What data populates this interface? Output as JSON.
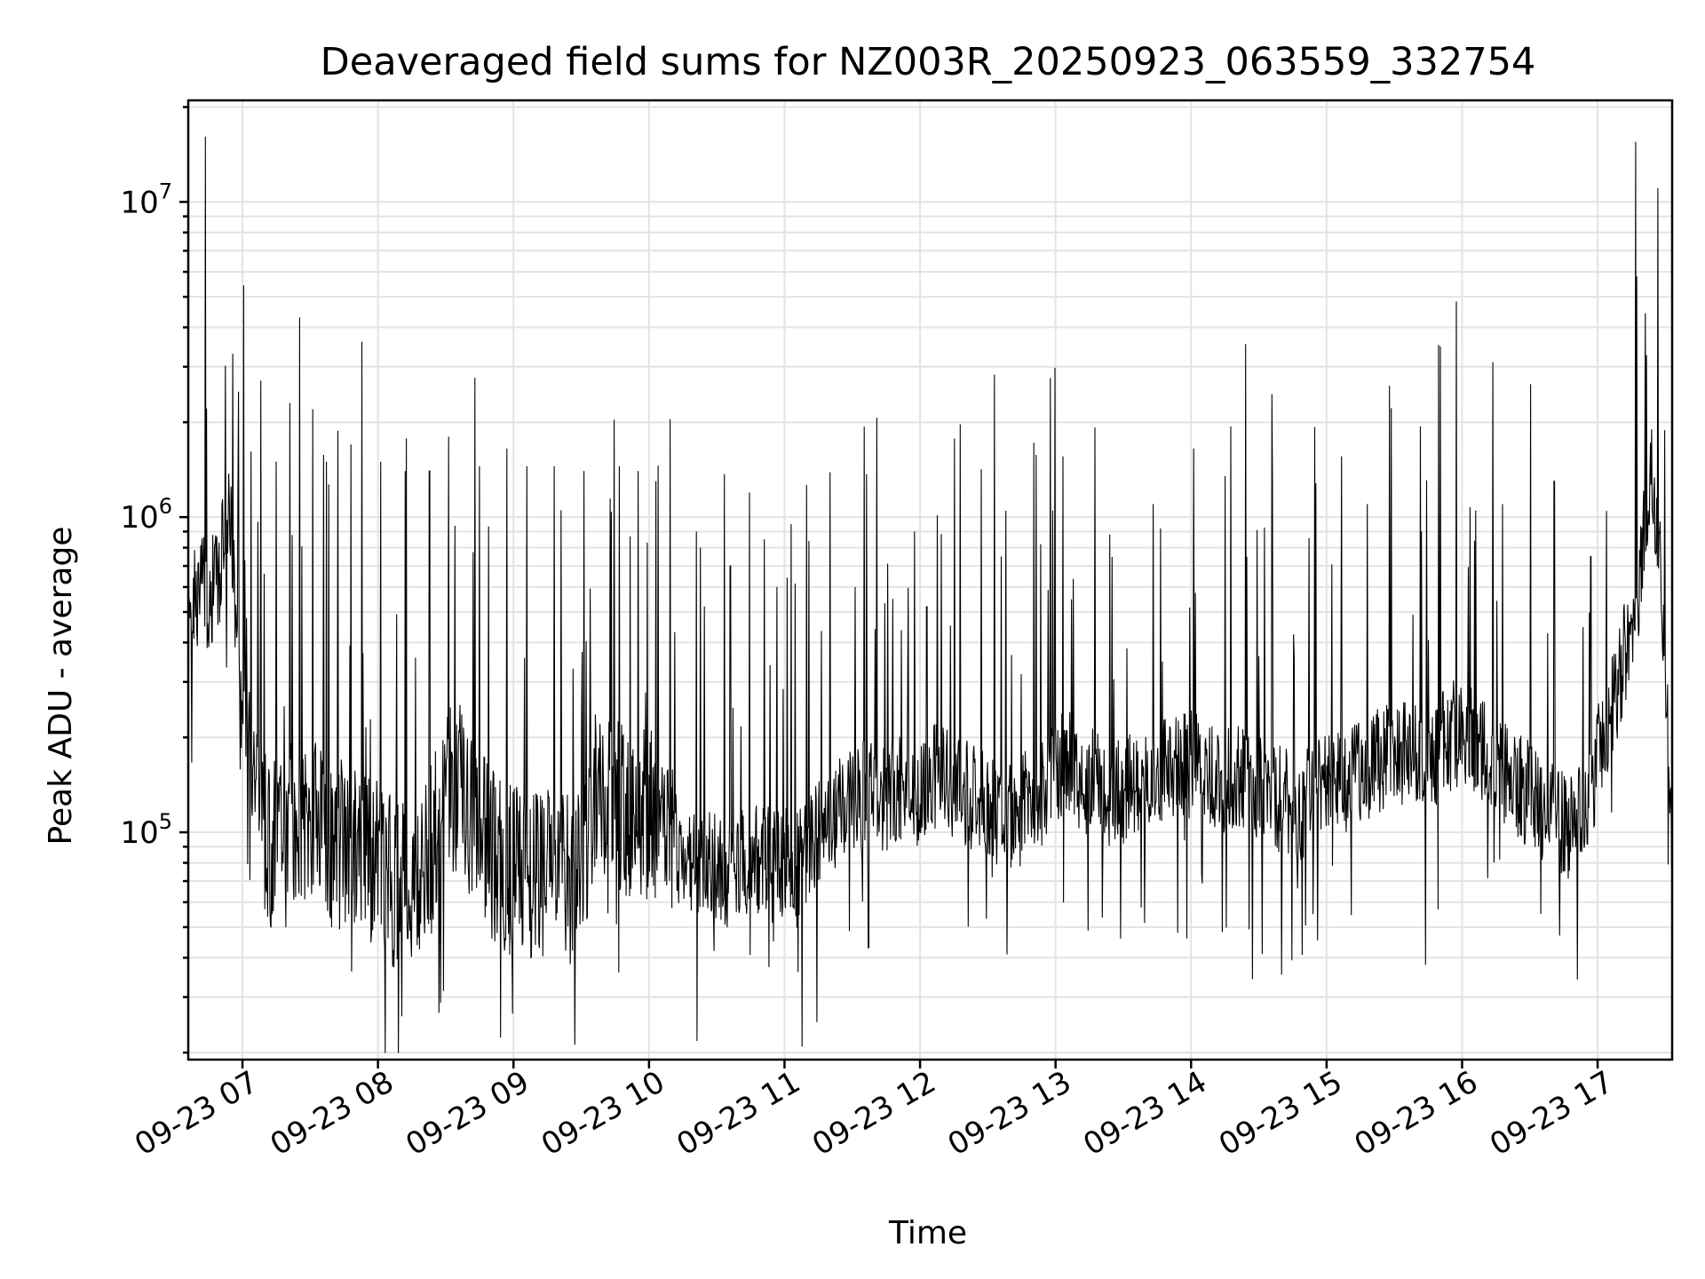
{
  "chart_data": {
    "type": "line",
    "title": "Deaveraged field sums for NZ003R_20250923_063559_332754",
    "xlabel": "Time",
    "ylabel": "Peak ADU - average",
    "yscale": "log",
    "ylim": [
      19000,
      21000000
    ],
    "xlim_hours": [
      6.6,
      17.55
    ],
    "x_ticks": [
      {
        "hour": 7,
        "label": "09-23 07"
      },
      {
        "hour": 8,
        "label": "09-23 08"
      },
      {
        "hour": 9,
        "label": "09-23 09"
      },
      {
        "hour": 10,
        "label": "09-23 10"
      },
      {
        "hour": 11,
        "label": "09-23 11"
      },
      {
        "hour": 12,
        "label": "09-23 12"
      },
      {
        "hour": 13,
        "label": "09-23 13"
      },
      {
        "hour": 14,
        "label": "09-23 14"
      },
      {
        "hour": 15,
        "label": "09-23 15"
      },
      {
        "hour": 16,
        "label": "09-23 16"
      },
      {
        "hour": 17,
        "label": "09-23 17"
      }
    ],
    "y_ticks": [
      {
        "value": 100000,
        "base": "10",
        "exp": "5"
      },
      {
        "value": 1000000,
        "base": "10",
        "exp": "6"
      },
      {
        "value": 10000000,
        "base": "10",
        "exp": "7"
      }
    ],
    "grid": true,
    "series": [
      {
        "name": "field sums",
        "color": "#000000",
        "points": [
          [
            6.6,
            620000
          ],
          [
            6.65,
            520000
          ],
          [
            6.7,
            600000
          ],
          [
            6.75,
            560000
          ],
          [
            6.8,
            620000
          ],
          [
            6.85,
            750000
          ],
          [
            6.9,
            1200000
          ],
          [
            6.95,
            500000
          ],
          [
            7.0,
            350000
          ],
          [
            7.05,
            230000
          ],
          [
            7.1,
            160000
          ],
          [
            7.15,
            110000
          ],
          [
            7.2,
            85000
          ],
          [
            7.3,
            130000
          ],
          [
            7.4,
            100000
          ],
          [
            7.5,
            115000
          ],
          [
            7.6,
            95000
          ],
          [
            7.7,
            90000
          ],
          [
            7.8,
            92000
          ],
          [
            7.9,
            88000
          ],
          [
            8.0,
            80000
          ],
          [
            8.1,
            70000
          ],
          [
            8.2,
            68000
          ],
          [
            8.3,
            72000
          ],
          [
            8.4,
            90000
          ],
          [
            8.5,
            130000
          ],
          [
            8.6,
            140000
          ],
          [
            8.7,
            110000
          ],
          [
            8.8,
            90000
          ],
          [
            8.9,
            80000
          ],
          [
            9.0,
            75000
          ],
          [
            9.1,
            72000
          ],
          [
            9.2,
            70000
          ],
          [
            9.3,
            75000
          ],
          [
            9.4,
            70000
          ],
          [
            9.5,
            72000
          ],
          [
            9.6,
            130000
          ],
          [
            9.7,
            140000
          ],
          [
            9.8,
            120000
          ],
          [
            9.9,
            110000
          ],
          [
            10.0,
            115000
          ],
          [
            10.1,
            105000
          ],
          [
            10.2,
            90000
          ],
          [
            10.3,
            85000
          ],
          [
            10.4,
            80000
          ],
          [
            10.5,
            78000
          ],
          [
            10.6,
            72000
          ],
          [
            10.7,
            80000
          ],
          [
            10.8,
            82000
          ],
          [
            10.9,
            85000
          ],
          [
            11.0,
            80000
          ],
          [
            11.1,
            78000
          ],
          [
            11.2,
            95000
          ],
          [
            11.3,
            100000
          ],
          [
            11.4,
            120000
          ],
          [
            11.5,
            130000
          ],
          [
            11.6,
            135000
          ],
          [
            11.7,
            120000
          ],
          [
            11.8,
            135000
          ],
          [
            11.9,
            140000
          ],
          [
            12.0,
            130000
          ],
          [
            12.1,
            150000
          ],
          [
            12.2,
            145000
          ],
          [
            12.3,
            135000
          ],
          [
            12.4,
            130000
          ],
          [
            12.5,
            120000
          ],
          [
            12.6,
            115000
          ],
          [
            12.7,
            110000
          ],
          [
            12.8,
            125000
          ],
          [
            12.9,
            130000
          ],
          [
            13.0,
            160000
          ],
          [
            13.1,
            165000
          ],
          [
            13.2,
            150000
          ],
          [
            13.3,
            140000
          ],
          [
            13.4,
            130000
          ],
          [
            13.5,
            135000
          ],
          [
            13.6,
            145000
          ],
          [
            13.7,
            155000
          ],
          [
            13.8,
            160000
          ],
          [
            13.9,
            170000
          ],
          [
            14.0,
            165000
          ],
          [
            14.1,
            160000
          ],
          [
            14.2,
            150000
          ],
          [
            14.3,
            145000
          ],
          [
            14.4,
            150000
          ],
          [
            14.5,
            135000
          ],
          [
            14.6,
            130000
          ],
          [
            14.7,
            125000
          ],
          [
            14.8,
            120000
          ],
          [
            14.9,
            130000
          ],
          [
            15.0,
            140000
          ],
          [
            15.1,
            145000
          ],
          [
            15.2,
            150000
          ],
          [
            15.3,
            160000
          ],
          [
            15.4,
            170000
          ],
          [
            15.5,
            180000
          ],
          [
            15.6,
            175000
          ],
          [
            15.7,
            170000
          ],
          [
            15.8,
            180000
          ],
          [
            15.9,
            200000
          ],
          [
            16.0,
            210000
          ],
          [
            16.1,
            190000
          ],
          [
            16.2,
            170000
          ],
          [
            16.3,
            150000
          ],
          [
            16.4,
            140000
          ],
          [
            16.5,
            130000
          ],
          [
            16.6,
            120000
          ],
          [
            16.7,
            110000
          ],
          [
            16.8,
            100000
          ],
          [
            16.9,
            120000
          ],
          [
            17.0,
            170000
          ],
          [
            17.1,
            240000
          ],
          [
            17.2,
            360000
          ],
          [
            17.25,
            450000
          ],
          [
            17.3,
            600000
          ],
          [
            17.35,
            900000
          ],
          [
            17.4,
            1300000
          ],
          [
            17.45,
            900000
          ],
          [
            17.5,
            300000
          ],
          [
            17.55,
            100000
          ]
        ],
        "spikes": [
          [
            6.93,
            3300000
          ],
          [
            6.97,
            2500000
          ],
          [
            7.25,
            1500000
          ],
          [
            7.35,
            2300000
          ],
          [
            7.42,
            4300000
          ],
          [
            7.52,
            2200000
          ],
          [
            7.62,
            1500000
          ],
          [
            7.8,
            1700000
          ],
          [
            7.88,
            3600000
          ],
          [
            8.02,
            1500000
          ],
          [
            8.2,
            1400000
          ],
          [
            8.38,
            1400000
          ],
          [
            8.52,
            1800000
          ],
          [
            8.75,
            1450000
          ],
          [
            8.95,
            1650000
          ],
          [
            9.1,
            1450000
          ],
          [
            9.3,
            1450000
          ],
          [
            9.52,
            1400000
          ],
          [
            9.78,
            1450000
          ],
          [
            9.92,
            1400000
          ],
          [
            10.05,
            1300000
          ],
          [
            10.35,
            900000
          ],
          [
            10.6,
            700000
          ],
          [
            10.85,
            850000
          ],
          [
            11.05,
            950000
          ],
          [
            11.18,
            840000
          ],
          [
            11.52,
            600000
          ],
          [
            11.8,
            550000
          ],
          [
            12.05,
            520000
          ],
          [
            12.6,
            750000
          ],
          [
            12.98,
            1050000
          ],
          [
            13.4,
            880000
          ],
          [
            13.72,
            1100000
          ],
          [
            14.02,
            1650000
          ],
          [
            14.25,
            1350000
          ],
          [
            14.6,
            1300000
          ],
          [
            14.92,
            1280000
          ],
          [
            15.3,
            1100000
          ],
          [
            15.7,
            900000
          ],
          [
            16.1,
            1050000
          ],
          [
            16.3,
            1100000
          ],
          [
            16.68,
            1300000
          ],
          [
            16.95,
            750000
          ],
          [
            17.28,
            15500000
          ],
          [
            17.4,
            1900000
          ]
        ],
        "dips": [
          [
            7.22,
            55000
          ],
          [
            7.32,
            50000
          ],
          [
            8.12,
            44000
          ],
          [
            8.22,
            46000
          ],
          [
            9.07,
            45000
          ],
          [
            10.48,
            42000
          ],
          [
            10.92,
            45000
          ],
          [
            11.1,
            36000
          ],
          [
            11.24,
            25000
          ],
          [
            11.62,
            43000
          ],
          [
            12.64,
            41000
          ],
          [
            13.48,
            46000
          ],
          [
            13.9,
            48000
          ],
          [
            14.9,
            55000
          ],
          [
            15.73,
            38000
          ],
          [
            16.72,
            47000
          ],
          [
            17.52,
            79000
          ]
        ]
      }
    ]
  }
}
